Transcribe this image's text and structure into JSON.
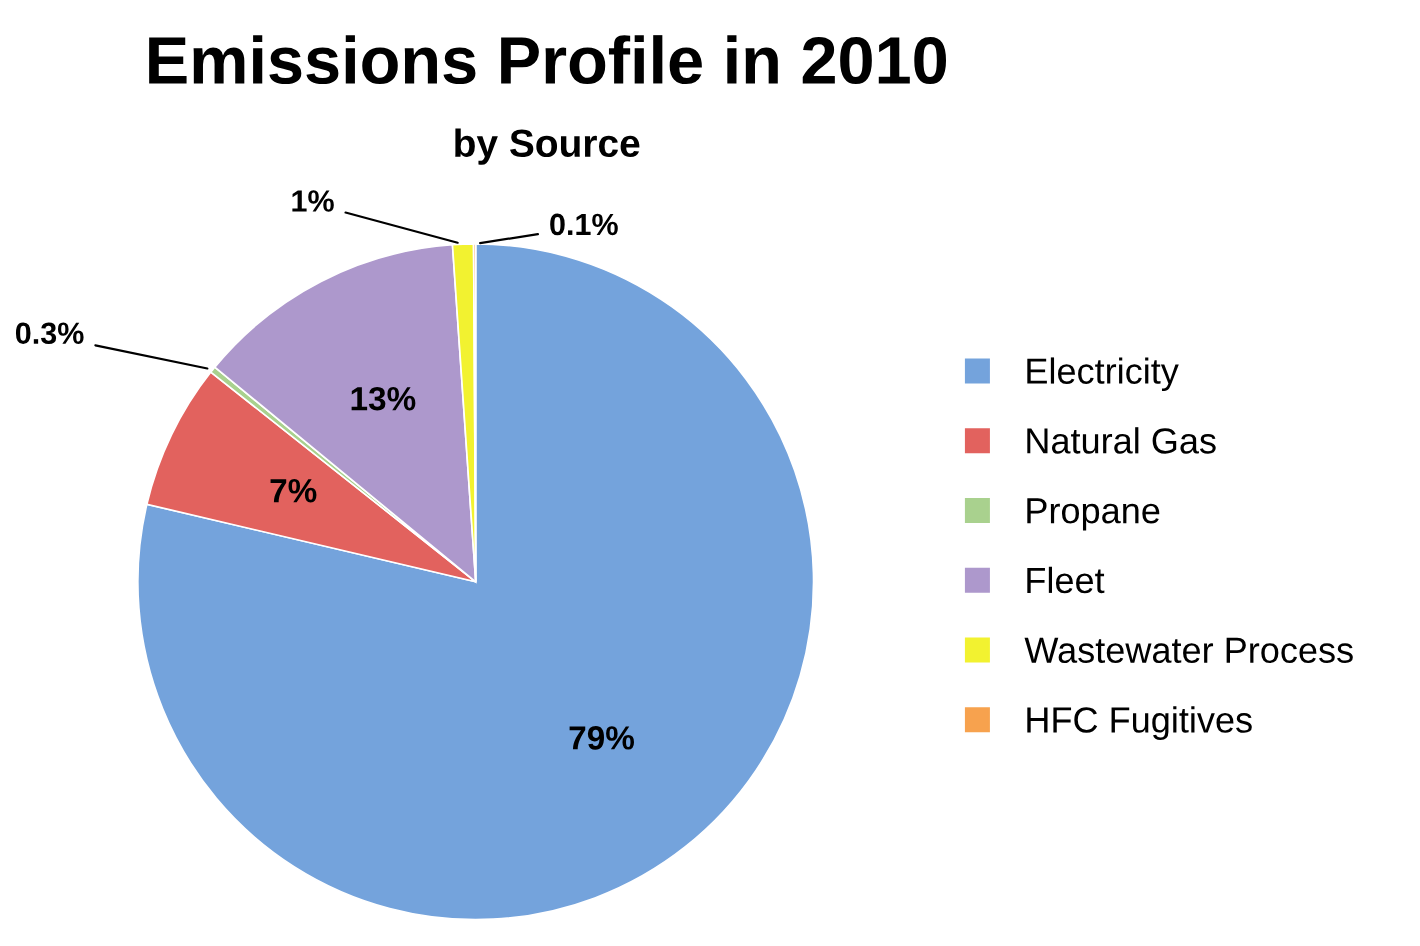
{
  "chart_data": {
    "type": "pie",
    "title": "Emissions Profile in 2010",
    "subtitle": "by Source",
    "categories": [
      "Electricity",
      "Natural Gas",
      "Propane",
      "Fleet",
      "Wastewater Process",
      "HFC Fugitives"
    ],
    "values": [
      79,
      7,
      0.3,
      13,
      1,
      0.1
    ],
    "colors": [
      "#74a3dc",
      "#e2625e",
      "#a9d18e",
      "#ad98cc",
      "#f2f230",
      "#f7a24e"
    ],
    "value_labels": [
      "79%",
      "7%",
      "0.3%",
      "13%",
      "1%",
      "0.1%"
    ],
    "legend": "right"
  }
}
